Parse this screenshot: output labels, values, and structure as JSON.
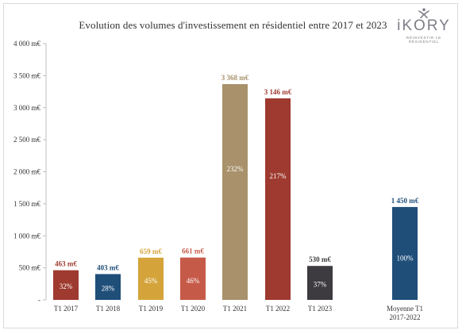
{
  "logo": {
    "wordmark": "iKORY",
    "tagline": "RÉINVESTIR LE RÉSIDENTIEL",
    "icon": "ikory-star-figure-icon",
    "color": "#7d7d87"
  },
  "chart_data": {
    "type": "bar",
    "title": "Evolution des volumes d'investissement en résidentiel entre 2017 et 2023",
    "xlabel": "",
    "ylabel": "",
    "ylim": [
      0,
      4000
    ],
    "grid": false,
    "legend": "none",
    "yticks": [
      {
        "value": 0,
        "label": "-"
      },
      {
        "value": 500,
        "label": "500 m€"
      },
      {
        "value": 1000,
        "label": "1 000 m€"
      },
      {
        "value": 1500,
        "label": "1 500 m€"
      },
      {
        "value": 2000,
        "label": "2 000 m€"
      },
      {
        "value": 2500,
        "label": "2 500 m€"
      },
      {
        "value": 3000,
        "label": "3 000 m€"
      },
      {
        "value": 3500,
        "label": "3 500 m€"
      },
      {
        "value": 4000,
        "label": "4 000 m€"
      }
    ],
    "bars": [
      {
        "category": "T1 2017",
        "value": 463,
        "value_label": "463 m€",
        "inner_label": "32%",
        "color": "#9e3a2f",
        "label_color": "#9e3a2f"
      },
      {
        "category": "T1 2018",
        "value": 403,
        "value_label": "403 m€",
        "inner_label": "28%",
        "color": "#1f4e79",
        "label_color": "#1f4e79"
      },
      {
        "category": "T1 2019",
        "value": 659,
        "value_label": "659 m€",
        "inner_label": "45%",
        "color": "#d4a43a",
        "label_color": "#d4a43a"
      },
      {
        "category": "T1 2020",
        "value": 661,
        "value_label": "661 m€",
        "inner_label": "46%",
        "color": "#c65a48",
        "label_color": "#c65a48"
      },
      {
        "category": "T1 2021",
        "value": 3368,
        "value_label": "3 368 m€",
        "inner_label": "232%",
        "color": "#a8916b",
        "label_color": "#a8916b"
      },
      {
        "category": "T1 2022",
        "value": 3146,
        "value_label": "3 146 m€",
        "inner_label": "217%",
        "color": "#9e3a2f",
        "label_color": "#9e3a2f"
      },
      {
        "category": "T1 2023",
        "value": 530,
        "value_label": "530 m€",
        "inner_label": "37%",
        "color": "#3d3b3f",
        "label_color": "#3d3b3f"
      },
      {
        "category": "Moyenne T1\n2017-2022",
        "value": 1450,
        "value_label": "1 450 m€",
        "inner_label": "100%",
        "color": "#1f4e79",
        "label_color": "#1f4e79"
      }
    ]
  }
}
